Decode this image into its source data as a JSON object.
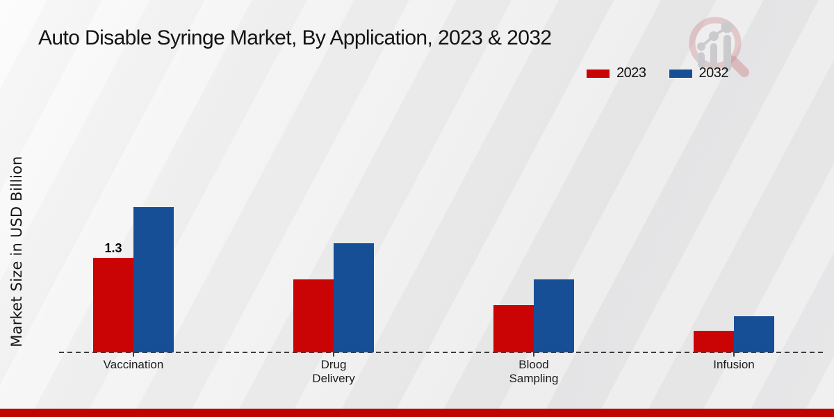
{
  "page_title": "Auto Disable Syringe Market, By Application, 2023 & 2032",
  "colors": {
    "series_2023": "#ca0405",
    "series_2032": "#174f97",
    "footer_bar": "#c00404",
    "axis_line": "#3c3c3c",
    "text_dark": "#141414"
  },
  "legend": {
    "items": [
      {
        "label": "2023",
        "color": "#ca0405"
      },
      {
        "label": "2032",
        "color": "#174f97"
      }
    ]
  },
  "chart_data": {
    "type": "bar",
    "title": "Auto Disable Syringe Market, By Application, 2023 & 2032",
    "xlabel": "",
    "ylabel": "Market Size in USD Billion",
    "categories": [
      "Vaccination",
      "Drug Delivery",
      "Blood Sampling",
      "Infusion"
    ],
    "series": [
      {
        "name": "2023",
        "color": "#ca0405",
        "values": [
          1.3,
          1.0,
          0.65,
          0.3
        ]
      },
      {
        "name": "2032",
        "color": "#174f97",
        "values": [
          2.0,
          1.5,
          1.0,
          0.5
        ]
      }
    ],
    "annotations": [
      {
        "series": "2023",
        "category": "Vaccination",
        "text": "1.3"
      }
    ],
    "ylim": [
      0,
      2.2
    ],
    "grid": false,
    "y_axis_ticks_visible": false,
    "baseline_style": "dashed",
    "legend_position": "top-right"
  },
  "branding": {
    "logo": "magnifier-bar-chart-watermark"
  }
}
